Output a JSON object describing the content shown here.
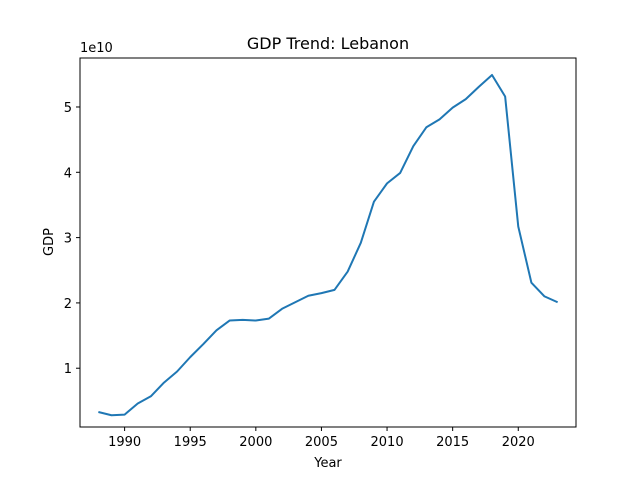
{
  "chart_data": {
    "type": "line",
    "title": "GDP Trend: Lebanon",
    "xlabel": "Year",
    "ylabel": "GDP",
    "y_offset_label": "1e10",
    "xlim": [
      1986.6,
      2024.4
    ],
    "ylim": [
      1000000000.0,
      57500000000.0
    ],
    "x_ticks": [
      1990,
      1995,
      2000,
      2005,
      2010,
      2015,
      2020
    ],
    "y_ticks": [
      10000000000.0,
      20000000000.0,
      30000000000.0,
      40000000000.0,
      50000000000.0
    ],
    "y_tick_labels": [
      "1",
      "2",
      "3",
      "4",
      "5"
    ],
    "grid": false,
    "series_color": "#1f77b4",
    "series": [
      {
        "x": [
          1988,
          1989,
          1990,
          1991,
          1992,
          1993,
          1994,
          1995,
          1996,
          1997,
          1998,
          1999,
          2000,
          2001,
          2002,
          2003,
          2004,
          2005,
          2006,
          2007,
          2008,
          2009,
          2010,
          2011,
          2012,
          2013,
          2014,
          2015,
          2016,
          2017,
          2018,
          2019,
          2020,
          2021,
          2022,
          2023
        ],
        "values": [
          3300000000.0,
          2800000000.0,
          2900000000.0,
          4600000000.0,
          5700000000.0,
          7800000000.0,
          9500000000.0,
          11700000000.0,
          13700000000.0,
          15800000000.0,
          17300000000.0,
          17400000000.0,
          17300000000.0,
          17600000000.0,
          19100000000.0,
          20100000000.0,
          21100000000.0,
          21500000000.0,
          22000000000.0,
          24800000000.0,
          29200000000.0,
          35500000000.0,
          38300000000.0,
          39900000000.0,
          44000000000.0,
          46900000000.0,
          48100000000.0,
          49900000000.0,
          51200000000.0,
          53100000000.0,
          54900000000.0,
          51600000000.0,
          31700000000.0,
          23100000000.0,
          21000000000.0,
          20100000000.0
        ]
      }
    ]
  }
}
